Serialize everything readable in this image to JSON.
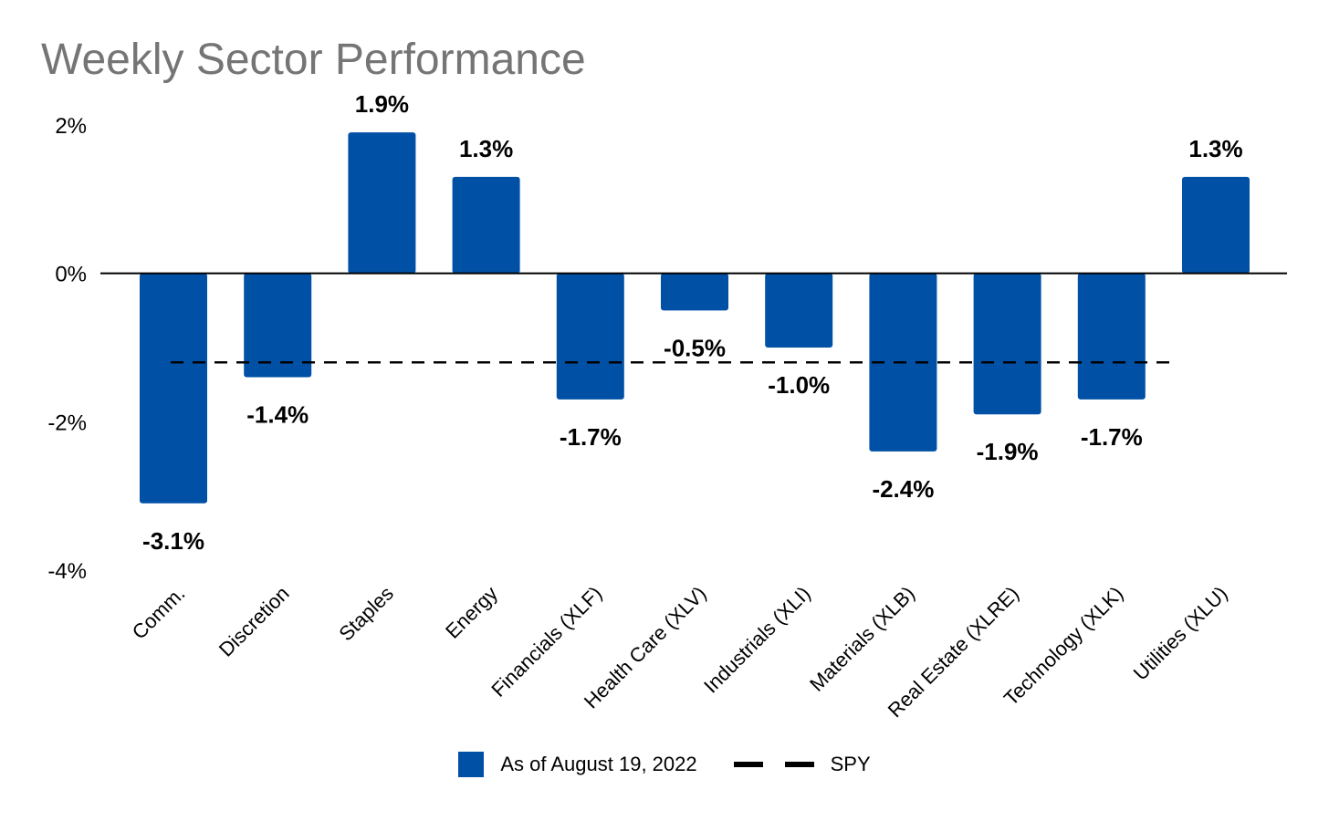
{
  "chart_data": {
    "type": "bar",
    "title": "Weekly Sector Performance",
    "categories": [
      "Comm.",
      "Discretion",
      "Staples",
      "Energy",
      "Financials (XLF)",
      "Health Care (XLV)",
      "Industrials (XLI)",
      "Materials (XLB)",
      "Real Estate (XLRE)",
      "Technology (XLK)",
      "Utilities (XLU)"
    ],
    "series": [
      {
        "name": "As of August 19, 2022",
        "values": [
          -3.1,
          -1.4,
          1.9,
          1.3,
          -1.7,
          -0.5,
          -1.0,
          -2.4,
          -1.9,
          -1.7,
          1.3
        ],
        "labels": [
          "-3.1%",
          "-1.4%",
          "1.9%",
          "1.3%",
          "-1.7%",
          "-0.5%",
          "-1.0%",
          "-2.4%",
          "-1.9%",
          "-1.7%",
          "1.3%"
        ],
        "color": "#0050a5"
      },
      {
        "name": "SPY",
        "type": "line",
        "style": "dashed",
        "value": -1.2,
        "color": "#000000"
      }
    ],
    "ylim": [
      -4,
      2
    ],
    "yticks": [
      2,
      0,
      -2,
      -4
    ],
    "ytick_labels": [
      "2%",
      "0%",
      "-2%",
      "-4%"
    ],
    "legend": "bottom",
    "grid": false
  }
}
